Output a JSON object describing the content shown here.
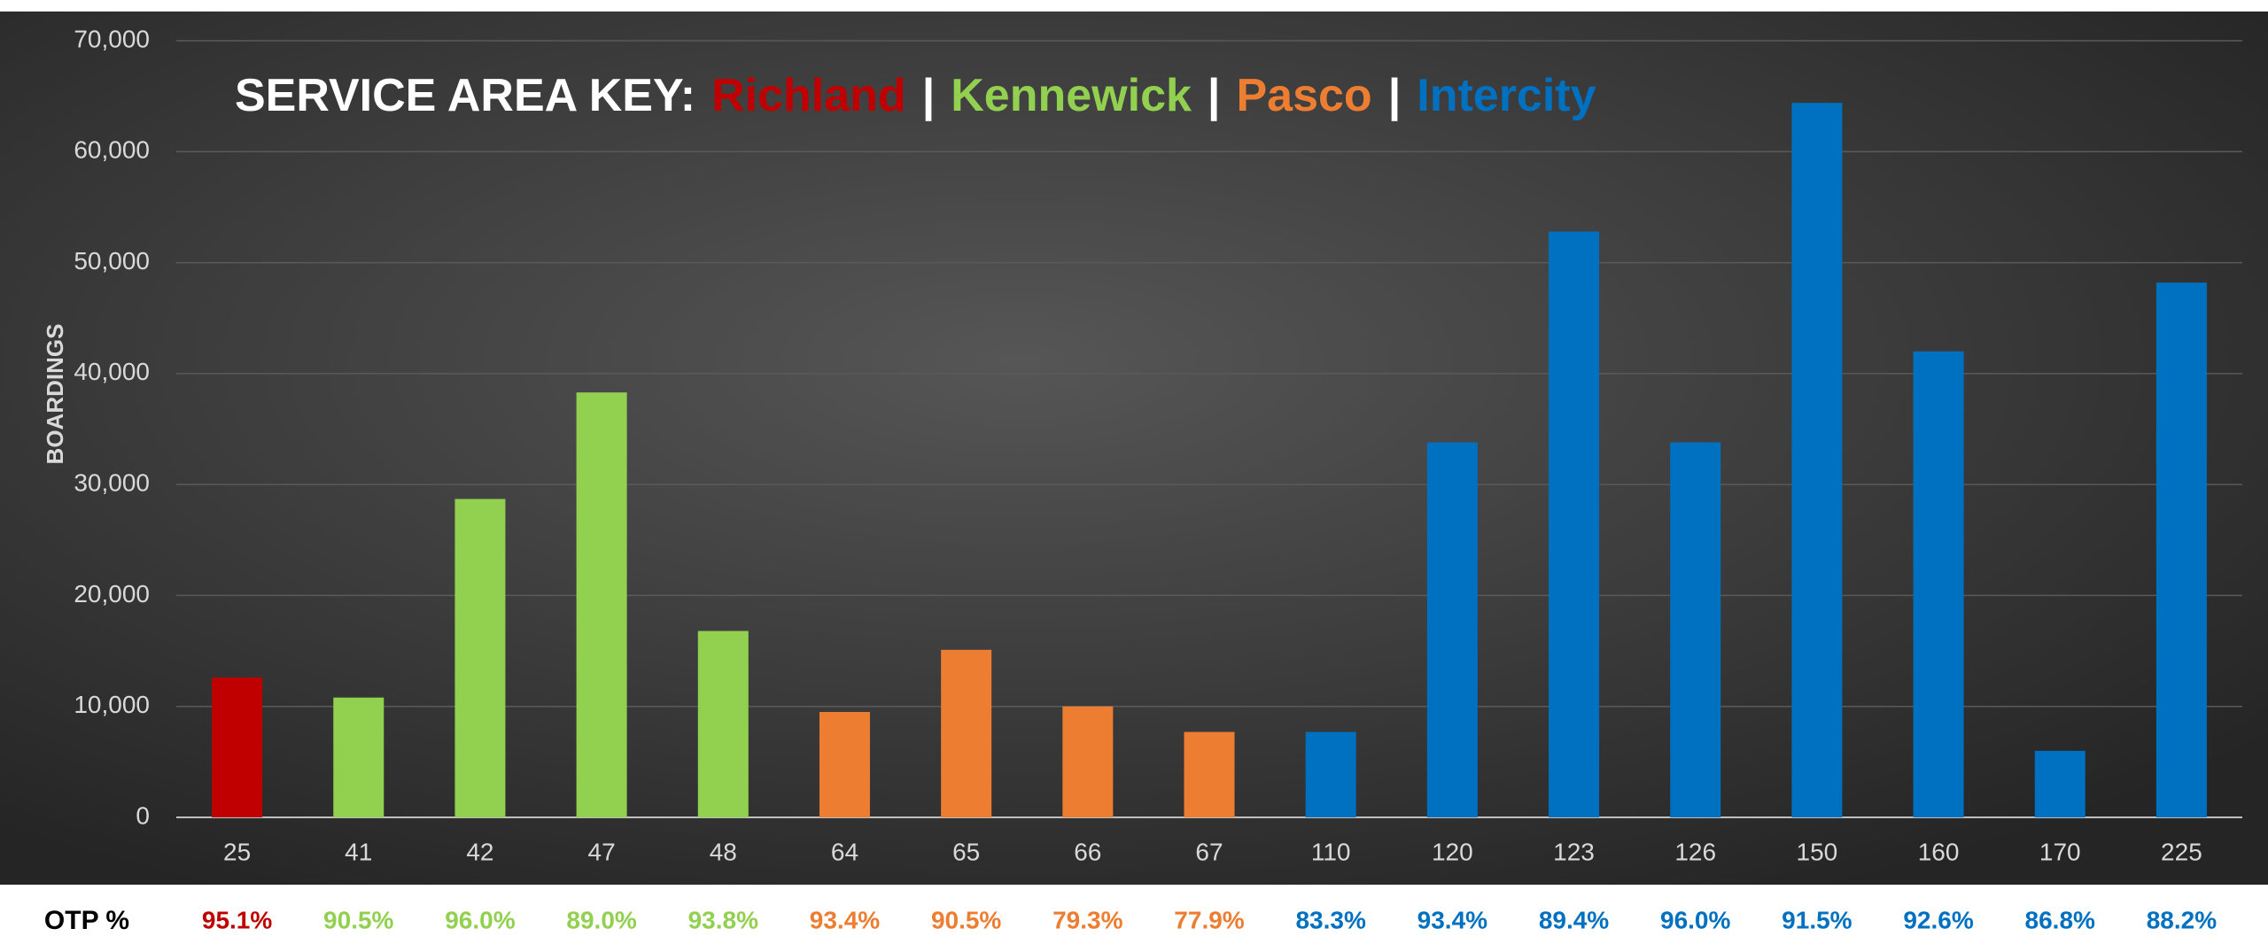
{
  "chart_data": {
    "type": "bar",
    "key": {
      "label": "SERVICE AREA KEY:",
      "separator": "|",
      "items": [
        {
          "name": "Richland",
          "color": "#c00000"
        },
        {
          "name": "Kennewick",
          "color": "#92d050"
        },
        {
          "name": "Pasco",
          "color": "#ed7d31"
        },
        {
          "name": "Intercity",
          "color": "#0070c0"
        }
      ]
    },
    "y_label": "BOARDINGS",
    "categories": [
      "25",
      "41",
      "42",
      "47",
      "48",
      "64",
      "65",
      "66",
      "67",
      "110",
      "120",
      "123",
      "126",
      "150",
      "160",
      "170",
      "225"
    ],
    "values": [
      12600,
      10800,
      28700,
      38300,
      16800,
      9500,
      15100,
      10000,
      7700,
      7700,
      33800,
      52800,
      33800,
      64400,
      42000,
      6000,
      48200
    ],
    "colors": [
      "#c00000",
      "#92d050",
      "#92d050",
      "#92d050",
      "#92d050",
      "#ed7d31",
      "#ed7d31",
      "#ed7d31",
      "#ed7d31",
      "#0070c0",
      "#0070c0",
      "#0070c0",
      "#0070c0",
      "#0070c0",
      "#0070c0",
      "#0070c0",
      "#0070c0"
    ],
    "ylim": [
      0,
      70000
    ],
    "yticks": [
      0,
      {
        "value": 10000,
        "label": "10,000"
      },
      {
        "value": 20000,
        "label": "20,000"
      },
      {
        "value": 30000,
        "label": "30,000"
      },
      {
        "value": 40000,
        "label": "40,000"
      },
      {
        "value": 50000,
        "label": "50,000"
      },
      {
        "value": 60000,
        "label": "60,000"
      },
      {
        "value": 70000,
        "label": "70,000"
      }
    ],
    "grid": true,
    "otp": {
      "label": "OTP %",
      "values": [
        95.1,
        90.5,
        96.0,
        89.0,
        93.8,
        93.4,
        90.5,
        79.3,
        77.9,
        83.3,
        93.4,
        89.4,
        96.0,
        91.5,
        92.6,
        86.8,
        88.2
      ],
      "value_labels": [
        "95.1%",
        "90.5%",
        "96.0%",
        "89.0%",
        "93.8%",
        "93.4%",
        "90.5%",
        "79.3%",
        "77.9%",
        "83.3%",
        "93.4%",
        "89.4%",
        "96.0%",
        "91.5%",
        "92.6%",
        "86.8%",
        "88.2%"
      ]
    }
  }
}
